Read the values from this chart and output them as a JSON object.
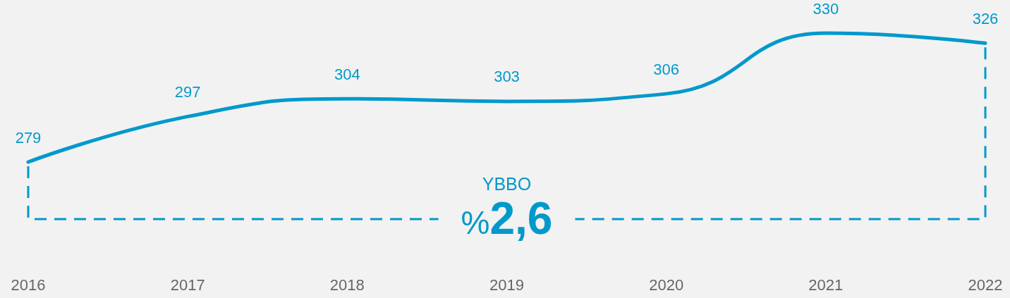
{
  "chart_data": {
    "type": "line",
    "categories": [
      "2016",
      "2017",
      "2018",
      "2019",
      "2020",
      "2021",
      "2022"
    ],
    "values": [
      279,
      297,
      304,
      303,
      306,
      330,
      326
    ],
    "color": "#0099cc",
    "data_labels": true,
    "annotations": [
      "YBBO",
      "%2,6"
    ],
    "grid": false,
    "marker": "none",
    "line_style": "solid",
    "tick_labels": "x"
  }
}
